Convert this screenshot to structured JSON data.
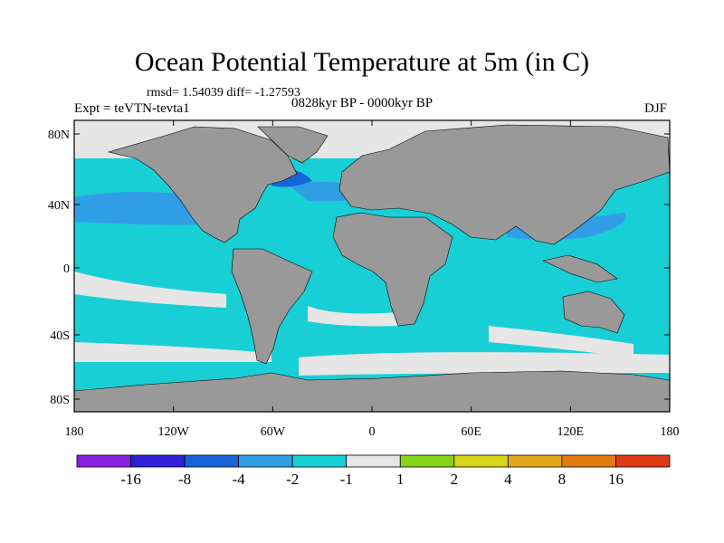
{
  "title": "Ocean Potential Temperature at 5m (in C)",
  "stats": "rmsd= 1.54039 diff= -1.27593",
  "period": "0828kyr BP - 0000kyr BP",
  "experiment": "Expt = teVTN-tevta1",
  "season": "DJF",
  "axes": {
    "lat_ticks": [
      "80N",
      "40N",
      "0",
      "40S",
      "80S"
    ],
    "lon_ticks": [
      "180",
      "120W",
      "60W",
      "0",
      "60E",
      "120E",
      "180"
    ]
  },
  "colorbar": {
    "labels": [
      "-16",
      "-8",
      "-4",
      "-2",
      "-1",
      "1",
      "2",
      "4",
      "8",
      "16"
    ],
    "colors": [
      "#8a1fe0",
      "#2f1fd6",
      "#1565d8",
      "#2f9ee6",
      "#19cfd6",
      "#e6e6e6",
      "#86d31a",
      "#d7d41a",
      "#e6a61a",
      "#e67a10",
      "#e03a12"
    ]
  },
  "colors": {
    "land": "#999999",
    "ocean_light": "#e6e6e6",
    "ocean_cyan": "#19cfd6",
    "ocean_blue": "#2f9ee6",
    "ocean_deep": "#1565d8"
  }
}
